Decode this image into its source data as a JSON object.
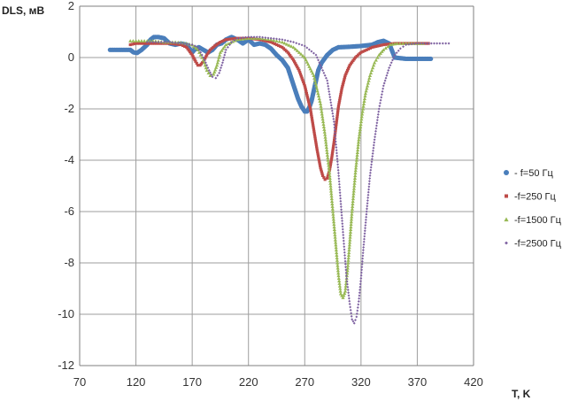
{
  "chart_data": {
    "type": "scatter",
    "ylabel": "DLS, мВ",
    "xlabel": "T, K",
    "xlim": [
      70,
      420
    ],
    "ylim": [
      -12,
      2
    ],
    "x_ticks": [
      70,
      120,
      170,
      220,
      270,
      320,
      370,
      420
    ],
    "y_ticks": [
      2,
      0,
      -2,
      -4,
      -6,
      -8,
      -10,
      -12
    ],
    "grid": "vertical and horizontal major gridlines",
    "legend_position": "right",
    "series": [
      {
        "name": "- f=50 Гц",
        "marker": "circle",
        "color": "#4a7ebb",
        "x": [
          97,
          105,
          110,
          115,
          118,
          121,
          125,
          130,
          133,
          136,
          140,
          145,
          150,
          155,
          160,
          165,
          170,
          173,
          176,
          180,
          184,
          188,
          192,
          196,
          200,
          205,
          210,
          215,
          220,
          225,
          230,
          235,
          240,
          245,
          250,
          255,
          258,
          261,
          264,
          267,
          270,
          272,
          274,
          276,
          278,
          280,
          282,
          285,
          290,
          295,
          300,
          310,
          320,
          330,
          335,
          340,
          345,
          350,
          360,
          370,
          382
        ],
        "y": [
          0.3,
          0.3,
          0.3,
          0.3,
          0.2,
          0.18,
          0.3,
          0.5,
          0.7,
          0.8,
          0.8,
          0.75,
          0.55,
          0.5,
          0.55,
          0.5,
          0.2,
          0.35,
          0.4,
          0.3,
          0.2,
          0.3,
          0.5,
          0.55,
          0.7,
          0.8,
          0.7,
          0.55,
          0.7,
          0.5,
          0.55,
          0.5,
          0.35,
          0.1,
          -0.1,
          -0.4,
          -0.8,
          -1.2,
          -1.6,
          -1.9,
          -2.1,
          -2.1,
          -1.95,
          -1.7,
          -1.3,
          -0.9,
          -0.5,
          -0.2,
          0.1,
          0.3,
          0.4,
          0.42,
          0.45,
          0.5,
          0.6,
          0.65,
          0.55,
          0.0,
          -0.05,
          -0.05,
          -0.05
        ]
      },
      {
        "name": "-f=250 Гц",
        "marker": "square",
        "color": "#be4b48",
        "x": [
          115,
          120,
          130,
          140,
          150,
          160,
          165,
          170,
          173,
          175,
          177,
          180,
          183,
          186,
          190,
          195,
          200,
          210,
          220,
          230,
          240,
          250,
          255,
          260,
          265,
          270,
          275,
          278,
          281,
          284,
          286,
          288,
          290,
          292,
          294,
          296,
          298,
          300,
          303,
          306,
          310,
          315,
          320,
          330,
          340,
          350,
          360,
          370,
          380
        ],
        "y": [
          0.5,
          0.55,
          0.55,
          0.55,
          0.55,
          0.5,
          0.4,
          0.1,
          -0.15,
          -0.3,
          -0.3,
          -0.15,
          0.1,
          0.3,
          0.45,
          0.6,
          0.7,
          0.75,
          0.75,
          0.7,
          0.6,
          0.4,
          0.2,
          -0.1,
          -0.5,
          -1.1,
          -2.0,
          -2.8,
          -3.6,
          -4.3,
          -4.6,
          -4.75,
          -4.7,
          -4.4,
          -3.9,
          -3.3,
          -2.6,
          -1.9,
          -1.2,
          -0.7,
          -0.3,
          0.0,
          0.2,
          0.4,
          0.5,
          0.55,
          0.55,
          0.55,
          0.55
        ]
      },
      {
        "name": "-f=1500 Гц",
        "marker": "triangle",
        "color": "#98b954",
        "x": [
          115,
          125,
          135,
          145,
          155,
          165,
          170,
          175,
          180,
          183,
          186,
          189,
          192,
          195,
          200,
          210,
          220,
          230,
          240,
          250,
          260,
          270,
          278,
          284,
          288,
          292,
          295,
          298,
          300,
          302,
          304,
          306,
          308,
          310,
          312,
          315,
          318,
          321,
          324,
          328,
          332,
          336,
          340,
          346,
          352,
          360,
          370,
          375
        ],
        "y": [
          0.65,
          0.65,
          0.65,
          0.6,
          0.6,
          0.55,
          0.5,
          0.3,
          -0.1,
          -0.5,
          -0.7,
          -0.65,
          -0.3,
          0.2,
          0.5,
          0.7,
          0.75,
          0.75,
          0.7,
          0.6,
          0.4,
          0.0,
          -0.7,
          -1.8,
          -3.0,
          -4.5,
          -6.0,
          -7.5,
          -8.5,
          -9.2,
          -9.35,
          -9.1,
          -8.3,
          -7.2,
          -6.0,
          -4.5,
          -3.2,
          -2.2,
          -1.4,
          -0.7,
          -0.2,
          0.1,
          0.3,
          0.5,
          0.55,
          0.55,
          0.55,
          0.55
        ]
      },
      {
        "name": "-f=2500 Гц",
        "marker": "diamond",
        "color": "#7d60a0",
        "x": [
          130,
          140,
          150,
          160,
          170,
          175,
          180,
          185,
          188,
          191,
          194,
          197,
          200,
          205,
          210,
          220,
          230,
          240,
          250,
          260,
          270,
          280,
          290,
          296,
          300,
          304,
          307,
          310,
          312,
          314,
          316,
          318,
          320,
          322,
          325,
          328,
          332,
          336,
          340,
          345,
          350,
          355,
          360,
          370,
          380,
          390,
          398
        ],
        "y": [
          0.6,
          0.6,
          0.6,
          0.55,
          0.5,
          0.4,
          0.0,
          -0.5,
          -0.75,
          -0.8,
          -0.6,
          -0.2,
          0.3,
          0.6,
          0.75,
          0.8,
          0.8,
          0.75,
          0.7,
          0.6,
          0.45,
          0.1,
          -0.9,
          -2.5,
          -4.5,
          -6.8,
          -8.5,
          -9.6,
          -10.2,
          -10.35,
          -10.1,
          -9.5,
          -8.6,
          -7.5,
          -6.0,
          -4.6,
          -3.2,
          -2.0,
          -1.1,
          -0.4,
          0.1,
          0.35,
          0.5,
          0.55,
          0.55,
          0.55,
          0.55
        ]
      }
    ]
  }
}
